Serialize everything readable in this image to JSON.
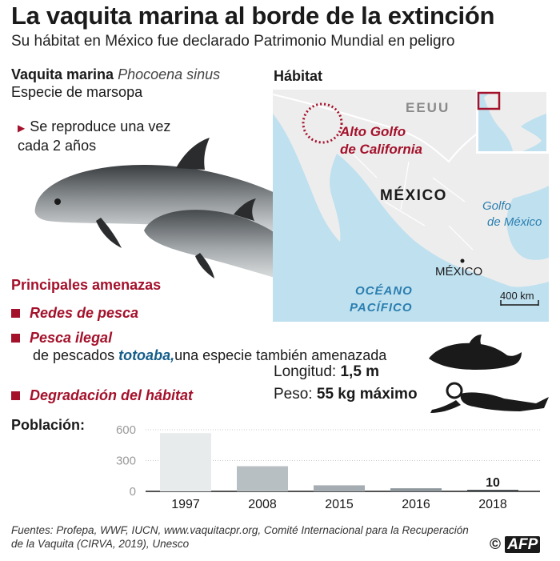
{
  "header": {
    "title": "La vaquita marina al borde de la extinción",
    "subtitle": "Su hábitat en México fue declarado Patrimonio Mundial en peligro"
  },
  "species": {
    "name": "Vaquita marina",
    "scientific_name": "Phocoena sinus",
    "type": "Especie de marsopa",
    "reproduction": "Se reproduce una vez cada 2 años"
  },
  "threats": {
    "title": "Principales amenazas",
    "items": [
      {
        "label": "Redes de pesca"
      },
      {
        "label": "Pesca ilegal",
        "desc_pre": "de pescados ",
        "desc_highlight": "totoaba,",
        "desc_post": "una especie también amenazada"
      },
      {
        "label": "Degradación del hábitat"
      }
    ]
  },
  "map": {
    "title": "Hábitat",
    "labels": {
      "usa": "EEUU",
      "region": "Alto Golfo de California",
      "country": "MÉXICO",
      "gulf": "Golfo de México",
      "ocean": "OCÉANO PACÍFICO",
      "capital": "MÉXICO",
      "scale": "400 km"
    },
    "colors": {
      "sea": "#bfe0ef",
      "land": "#ededed",
      "border": "#ffffff",
      "accent": "#a4112b"
    }
  },
  "stats": {
    "length_label": "Longitud:",
    "length_value": "1,5 m",
    "weight_label": "Peso:",
    "weight_value": "55 kg máximo"
  },
  "chart_data": {
    "type": "bar",
    "title": "Población:",
    "categories": [
      "1997",
      "2008",
      "2015",
      "2016",
      "2018"
    ],
    "values": [
      567,
      245,
      59,
      30,
      10
    ],
    "yticks": [
      0,
      300,
      600
    ],
    "ylim": [
      0,
      600
    ],
    "data_labels": {
      "2018": "10"
    },
    "bar_colors": [
      "#e8ebec",
      "#b8bfc3",
      "#a5adb2",
      "#8e979c",
      "#4a4f52"
    ]
  },
  "footer": {
    "sources": "Fuentes: Profepa, WWF, IUCN, www.vaquitacpr.org, Comité Internacional para la Recuperación de la Vaquita (CIRVA, 2019), Unesco",
    "copyright": "©",
    "agency": "AFP"
  }
}
